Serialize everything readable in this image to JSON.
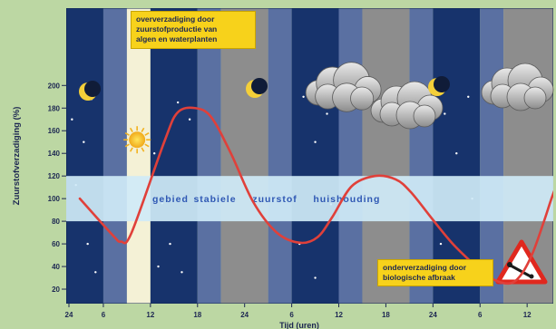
{
  "chart_data": {
    "type": "line",
    "xlabel": "Tijd (uren)",
    "ylabel": "Zuurstofverzadiging (%)",
    "x_ticks": [
      "24",
      "6",
      "12",
      "18",
      "24",
      "6",
      "12",
      "18",
      "24",
      "6",
      "12"
    ],
    "y_ticks": [
      20,
      40,
      60,
      80,
      100,
      120,
      140,
      160,
      180,
      200
    ],
    "ylim": [
      0,
      210
    ],
    "band": {
      "range": [
        80,
        120
      ],
      "label": [
        "gebied",
        "stabiele",
        "zuurstof",
        "huishouding"
      ]
    },
    "series": [
      {
        "color": "#e0403a",
        "points": [
          [
            0,
            100
          ],
          [
            8.3,
            68
          ],
          [
            10.5,
            62
          ],
          [
            13.2,
            70
          ],
          [
            21.5,
            150
          ],
          [
            24.9,
            176
          ],
          [
            29.4,
            180
          ],
          [
            33.5,
            172
          ],
          [
            38.5,
            140
          ],
          [
            44.2,
            97
          ],
          [
            50.2,
            70
          ],
          [
            56.1,
            61
          ],
          [
            60.6,
            66
          ],
          [
            64.4,
            84
          ],
          [
            69.3,
            111
          ],
          [
            75.2,
            120
          ],
          [
            80.5,
            117
          ],
          [
            84.3,
            106
          ],
          [
            89.6,
            83
          ],
          [
            94.8,
            61
          ],
          [
            100.1,
            43
          ],
          [
            104.6,
            30
          ],
          [
            109.3,
            25
          ],
          [
            112.3,
            32
          ],
          [
            115.3,
            51
          ],
          [
            118.3,
            80
          ],
          [
            120.1,
            99
          ],
          [
            121.9,
            116
          ]
        ]
      }
    ],
    "annotations": [
      {
        "lines": [
          "oververzadiging door",
          "zuurstofproductie van",
          "algen en waterplanten"
        ]
      },
      {
        "lines": [
          "onderverzadiging door",
          "biologische afbraak"
        ]
      }
    ],
    "shading": [
      {
        "from": -4,
        "to": 6,
        "phase": "night"
      },
      {
        "from": 6,
        "to": 12,
        "phase": "twilight"
      },
      {
        "from": 12,
        "to": 18,
        "phase": "day"
      },
      {
        "from": 18,
        "to": 30,
        "phase": "night"
      },
      {
        "from": 30,
        "to": 36,
        "phase": "twilight"
      },
      {
        "from": 36,
        "to": 48,
        "phase": "day-cloudy"
      },
      {
        "from": 48,
        "to": 54,
        "phase": "twilight"
      },
      {
        "from": 54,
        "to": 66,
        "phase": "night"
      },
      {
        "from": 66,
        "to": 72,
        "phase": "twilight"
      },
      {
        "from": 72,
        "to": 84,
        "phase": "day-cloudy"
      },
      {
        "from": 84,
        "to": 90,
        "phase": "twilight"
      },
      {
        "from": 90,
        "to": 102,
        "phase": "night"
      },
      {
        "from": 102,
        "to": 108,
        "phase": "twilight"
      },
      {
        "from": 108,
        "to": 122,
        "phase": "day-cloudy"
      }
    ],
    "icons": [
      "moon-icon",
      "sun-icon",
      "moon-icon",
      "cloud-icon",
      "moon-icon",
      "cloud-icon",
      "cloud-icon",
      "warning-triangle-icon"
    ],
    "colors": {
      "night": "#17336c",
      "twilight": "#5a70a2",
      "day": "#f4f1d6",
      "day_cloudy": "#8d8d8d",
      "band": "#cfeaf7",
      "band_text": "#2f58b4",
      "curve": "#e0403a",
      "annotation": "#f7d21b",
      "frame": "#bcd7a3"
    },
    "grid": false
  }
}
